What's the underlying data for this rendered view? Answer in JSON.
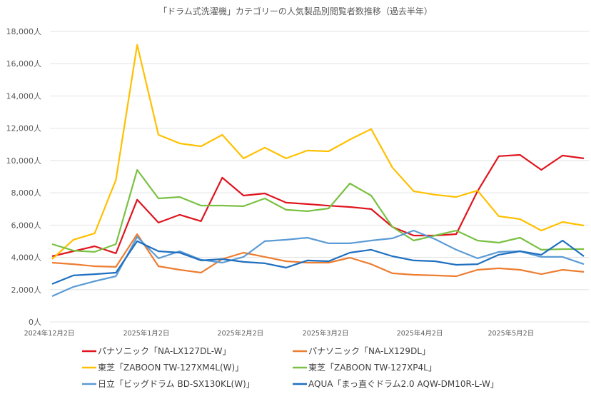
{
  "chart_data": {
    "type": "line",
    "title": "「ドラム式洗濯機」カテゴリーの人気製品別閲覧者数推移（過去半年）",
    "xlabel": "",
    "ylabel": "",
    "x_start": "2024-12-02",
    "x_interval": "weekly",
    "ylim": [
      0,
      18000
    ],
    "y_ticks": [
      "0人",
      "2,000人",
      "4,000人",
      "6,000人",
      "8,000人",
      "10,000人",
      "12,000人",
      "14,000人",
      "16,000人",
      "18,000人"
    ],
    "x_ticks": [
      "2024年12月2日",
      "2025年1月2日",
      "2025年2月2日",
      "2025年3月2日",
      "2025年4月2日",
      "2025年5月2日"
    ],
    "x_tick_dates": [
      "2024-12-02",
      "2025-01-02",
      "2025-02-02",
      "2025-03-02",
      "2025-04-02",
      "2025-05-02"
    ],
    "grid": true,
    "legend_position": "bottom",
    "series": [
      {
        "name": "パナソニック「NA-LX127DL-W」",
        "color": "#e0141e",
        "values": [
          4070,
          4380,
          4690,
          4250,
          7570,
          6150,
          6640,
          6240,
          8940,
          7830,
          7960,
          7390,
          7300,
          7200,
          7120,
          6990,
          5880,
          5350,
          5350,
          5440,
          8100,
          10270,
          10350,
          9420,
          10310,
          10130
        ]
      },
      {
        "name": "パナソニック「NA-LX129DL」",
        "color": "#ed7d31",
        "values": [
          3670,
          3580,
          3450,
          3410,
          5440,
          3450,
          3230,
          3050,
          3890,
          4290,
          4030,
          3760,
          3670,
          3670,
          3980,
          3580,
          3010,
          2920,
          2880,
          2830,
          3230,
          3320,
          3230,
          2960,
          3230,
          3100
        ]
      },
      {
        "name": "東芝「ZABOON TW-127XM4L(W)」",
        "color": "#ffc000",
        "values": [
          3890,
          5090,
          5490,
          8800,
          17170,
          11590,
          11060,
          10880,
          11590,
          10130,
          10800,
          10130,
          10620,
          10570,
          11300,
          11950,
          9560,
          8100,
          7880,
          7740,
          8140,
          6550,
          6370,
          5660,
          6190,
          5970
        ]
      },
      {
        "name": "東芝「ZABOON TW-127XP4L」",
        "color": "#7ac143",
        "values": [
          4820,
          4420,
          4340,
          4820,
          9420,
          7650,
          7740,
          7210,
          7210,
          7170,
          7650,
          6950,
          6860,
          7030,
          8580,
          7830,
          5880,
          5040,
          5350,
          5660,
          5040,
          4910,
          5220,
          4470,
          4510,
          4510
        ]
      },
      {
        "name": "日立「ビッグドラム BD-SX130KL(W)」",
        "color": "#5b9bd5",
        "values": [
          1590,
          2170,
          2520,
          2830,
          5270,
          3940,
          4380,
          3850,
          3670,
          4030,
          5000,
          5090,
          5220,
          4870,
          4870,
          5040,
          5180,
          5660,
          5130,
          4470,
          3940,
          4340,
          4380,
          4030,
          4030,
          3580
        ]
      },
      {
        "name": "AQUA「まっ直ぐドラム2.0 AQW-DM10R-L-W」",
        "color": "#1f6fbf",
        "values": [
          2350,
          2880,
          2960,
          3050,
          5000,
          4380,
          4290,
          3810,
          3890,
          3720,
          3630,
          3360,
          3810,
          3760,
          4290,
          4470,
          4070,
          3810,
          3760,
          3540,
          3580,
          4160,
          4380,
          4160,
          5040,
          4070
        ]
      }
    ]
  }
}
